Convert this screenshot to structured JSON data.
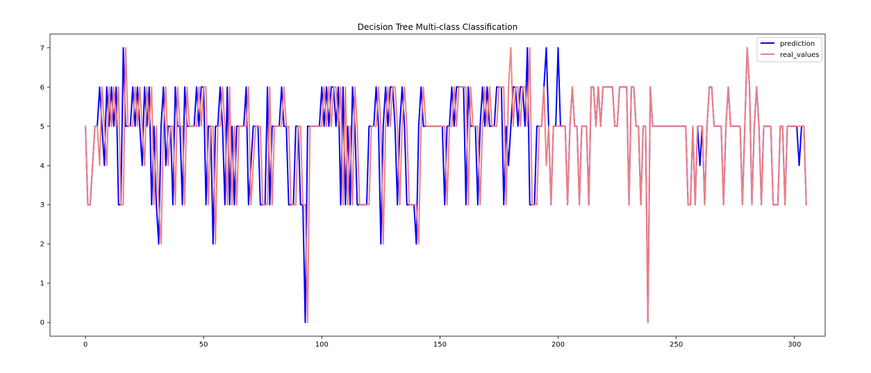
{
  "chart_data": {
    "type": "line",
    "title": "Decision Tree Multi-class Classification",
    "xlabel": "",
    "ylabel": "",
    "xlim": [
      -15,
      313
    ],
    "ylim": [
      -0.35,
      7.35
    ],
    "xticks": [
      0,
      50,
      100,
      150,
      200,
      250,
      300
    ],
    "yticks": [
      0,
      1,
      2,
      3,
      4,
      5,
      6,
      7
    ],
    "grid": false,
    "legend_position": "top-right",
    "series": [
      {
        "name": "prediction",
        "color": "#0000ff",
        "values": [
          5,
          3,
          3,
          4,
          5,
          5,
          6,
          5,
          4,
          6,
          5,
          6,
          5,
          6,
          3,
          3,
          7,
          5,
          5,
          5,
          6,
          5,
          6,
          5,
          4,
          6,
          5,
          6,
          3,
          5,
          3,
          2,
          5,
          6,
          4,
          5,
          5,
          3,
          6,
          5,
          5,
          3,
          6,
          5,
          5,
          5,
          5,
          6,
          5,
          6,
          6,
          3,
          5,
          5,
          2,
          5,
          5,
          6,
          5,
          3,
          6,
          3,
          5,
          3,
          5,
          5,
          5,
          5,
          6,
          3,
          4,
          5,
          5,
          5,
          3,
          3,
          3,
          6,
          3,
          5,
          5,
          5,
          5,
          6,
          5,
          5,
          3,
          3,
          3,
          5,
          5,
          3,
          3,
          0,
          5,
          5,
          5,
          5,
          5,
          5,
          6,
          5,
          6,
          5,
          6,
          6,
          5,
          6,
          3,
          6,
          3,
          5,
          3,
          6,
          5,
          3,
          3,
          3,
          3,
          3,
          5,
          5,
          5,
          6,
          5,
          2,
          5,
          6,
          5,
          6,
          6,
          5,
          3,
          5,
          6,
          5,
          3,
          3,
          3,
          3,
          2,
          5,
          6,
          5,
          5,
          5,
          5,
          5,
          5,
          5,
          5,
          5,
          3,
          5,
          5,
          6,
          5,
          6,
          6,
          6,
          6,
          3,
          6,
          5,
          5,
          5,
          3,
          5,
          6,
          5,
          6,
          5,
          5,
          5,
          6,
          6,
          6,
          3,
          5,
          4,
          5,
          6,
          6,
          5,
          6,
          6,
          5,
          7,
          3,
          3,
          3,
          5,
          5,
          5,
          6,
          7,
          5,
          3,
          5,
          5,
          7,
          5,
          5,
          5,
          3,
          5,
          6,
          5,
          5,
          3,
          5,
          5,
          5,
          3,
          6,
          6,
          5,
          6,
          5,
          6,
          6,
          6,
          6,
          6,
          5,
          5,
          6,
          6,
          6,
          6,
          3,
          6,
          6,
          5,
          5,
          3,
          5,
          5,
          0,
          6,
          5,
          5,
          5,
          5,
          5,
          5,
          5,
          5,
          5,
          5,
          5,
          5,
          5,
          5,
          5,
          3,
          3,
          5,
          3,
          5,
          4,
          5,
          3,
          5,
          6,
          6,
          5,
          5,
          5,
          5,
          3,
          5,
          6,
          5,
          5,
          5,
          5,
          5,
          3,
          5,
          7,
          6,
          3,
          5,
          6,
          5,
          3,
          5,
          5,
          5,
          5,
          3,
          3,
          3,
          5,
          5,
          3,
          5,
          5,
          5,
          5,
          5,
          4,
          5,
          5,
          3
        ]
      },
      {
        "name": "real_values",
        "color": "#f08080",
        "values": [
          5,
          3,
          3,
          4,
          5,
          5,
          4,
          6,
          5,
          4,
          6,
          5,
          6,
          5,
          6,
          3,
          3,
          7,
          5,
          5,
          5,
          6,
          5,
          6,
          5,
          4,
          6,
          5,
          6,
          3,
          5,
          3,
          2,
          5,
          6,
          4,
          5,
          5,
          3,
          6,
          5,
          5,
          3,
          6,
          5,
          5,
          5,
          5,
          6,
          5,
          6,
          6,
          3,
          5,
          5,
          2,
          5,
          5,
          6,
          5,
          3,
          6,
          3,
          5,
          3,
          5,
          5,
          5,
          5,
          6,
          3,
          4,
          5,
          5,
          5,
          3,
          3,
          3,
          6,
          3,
          5,
          5,
          5,
          5,
          6,
          5,
          5,
          3,
          3,
          3,
          5,
          5,
          3,
          3,
          0,
          5,
          5,
          5,
          5,
          5,
          5,
          6,
          5,
          6,
          5,
          6,
          6,
          5,
          6,
          3,
          6,
          3,
          5,
          3,
          6,
          5,
          3,
          3,
          3,
          3,
          3,
          5,
          5,
          5,
          6,
          5,
          2,
          5,
          6,
          5,
          6,
          6,
          5,
          3,
          5,
          6,
          5,
          3,
          3,
          3,
          3,
          2,
          5,
          6,
          5,
          5,
          5,
          5,
          5,
          5,
          5,
          5,
          5,
          3,
          5,
          5,
          6,
          5,
          6,
          6,
          6,
          6,
          3,
          6,
          5,
          5,
          5,
          3,
          5,
          6,
          5,
          6,
          5,
          5,
          5,
          6,
          6,
          6,
          3,
          6,
          7,
          5,
          6,
          6,
          5,
          6,
          6,
          5,
          7,
          3,
          3,
          3,
          5,
          5,
          6,
          4,
          5,
          3,
          5,
          5,
          5,
          5,
          5,
          5,
          3,
          5,
          6,
          5,
          5,
          3,
          5,
          5,
          5,
          3,
          6,
          6,
          5,
          6,
          5,
          6,
          6,
          6,
          6,
          6,
          5,
          5,
          6,
          6,
          6,
          6,
          3,
          6,
          6,
          5,
          5,
          3,
          5,
          5,
          0,
          6,
          5,
          5,
          5,
          5,
          5,
          5,
          5,
          5,
          5,
          5,
          5,
          5,
          5,
          5,
          5,
          3,
          3,
          5,
          3,
          5,
          5,
          5,
          3,
          5,
          6,
          6,
          5,
          5,
          5,
          5,
          3,
          5,
          6,
          5,
          5,
          5,
          5,
          5,
          3,
          5,
          7,
          6,
          3,
          5,
          6,
          5,
          3,
          5,
          5,
          5,
          5,
          3,
          3,
          3,
          5,
          5,
          3,
          5,
          5,
          5,
          5,
          5,
          5,
          5,
          5,
          3
        ]
      }
    ]
  }
}
